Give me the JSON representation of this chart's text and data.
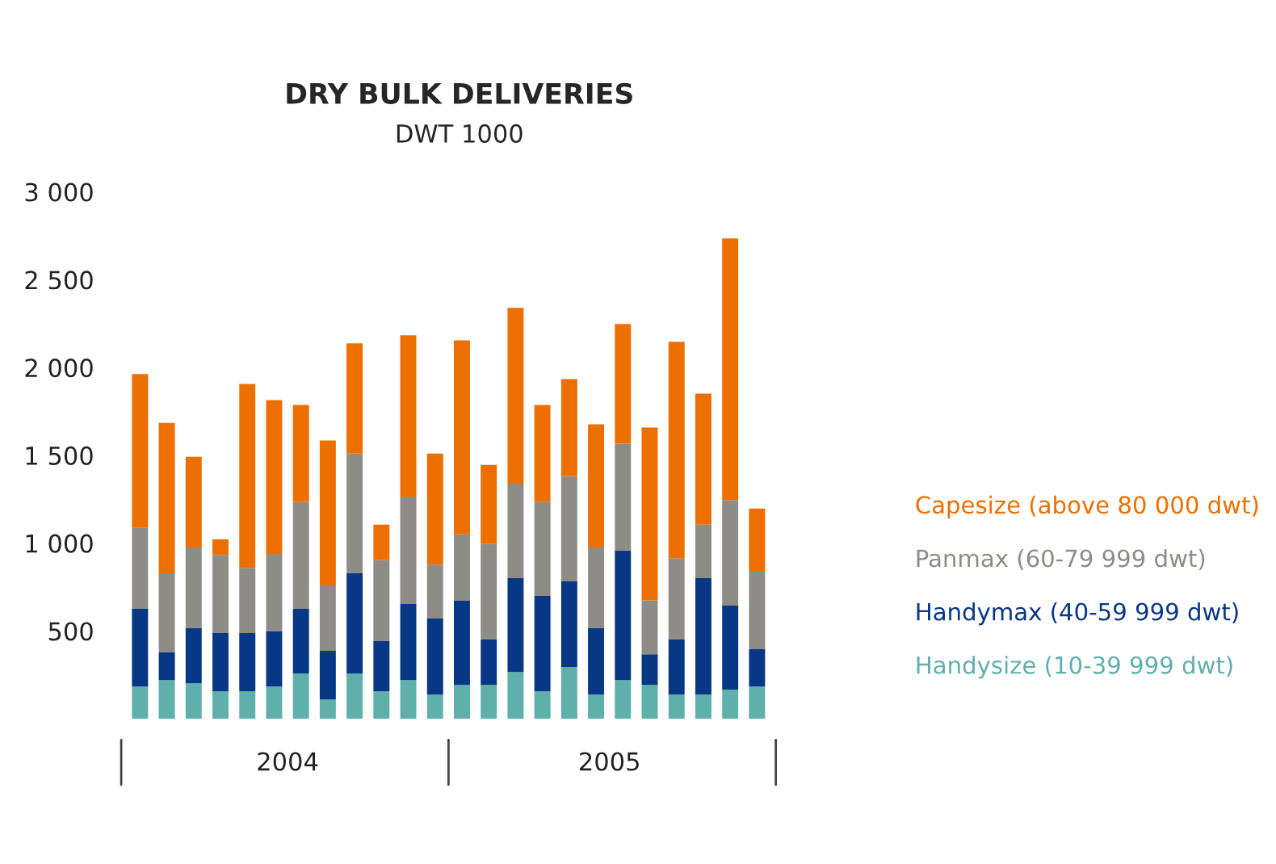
{
  "chart_data": {
    "type": "bar",
    "title": "DRY BULK DELIVERIES",
    "subtitle": "DWT 1000",
    "categories": [
      null,
      null,
      null,
      null,
      null,
      null,
      null,
      null,
      null,
      null,
      null,
      null,
      null,
      null,
      null,
      null,
      null,
      null,
      null,
      null,
      null,
      null,
      null,
      null
    ],
    "stacked": true,
    "series": [
      {
        "name": "Handysize (10-39 999 dwt)",
        "color": "#5fafab",
        "values": [
          184,
          221,
          203,
          157,
          157,
          184,
          258,
          110,
          258,
          157,
          221,
          138,
          193,
          193,
          267,
          157,
          295,
          138,
          221,
          193,
          138,
          138,
          166,
          184
        ]
      },
      {
        "name": "Handymax (40-59 999 dwt)",
        "color": "#083785",
        "values": [
          442,
          157,
          313,
          331,
          331,
          313,
          368,
          277,
          571,
          285,
          433,
          433,
          479,
          258,
          534,
          543,
          488,
          378,
          737,
          175,
          313,
          663,
          479,
          212
        ]
      },
      {
        "name": "Panmax (60-79 999 dwt)",
        "color": "#8e8c87",
        "values": [
          461,
          451,
          460,
          445,
          372,
          442,
          608,
          368,
          681,
          461,
          611,
          307,
          378,
          544,
          538,
          534,
          599,
          460,
          608,
          307,
          464,
          304,
          601,
          446
        ]
      },
      {
        "name": "Capesize (above 80 000 dwt)",
        "color": "#ed6f00",
        "values": [
          875,
          856,
          516,
          89,
          1046,
          875,
          553,
          829,
          627,
          202,
          918,
          632,
          1105,
          451,
          1000,
          553,
          552,
          700,
          681,
          983,
          1231,
          746,
          1489,
          355
        ]
      }
    ],
    "ylim": [
      0,
      3000
    ],
    "yticks": [
      500,
      {
        "value": 1000,
        "label": "1 000"
      },
      {
        "value": 1500,
        "label": "1 500"
      },
      {
        "value": 2000,
        "label": "2 000"
      },
      {
        "value": 2500,
        "label": "2 500"
      },
      {
        "value": 3000,
        "label": "3 000"
      }
    ],
    "annotations": [
      "2004",
      "2005"
    ],
    "legend": "right"
  }
}
